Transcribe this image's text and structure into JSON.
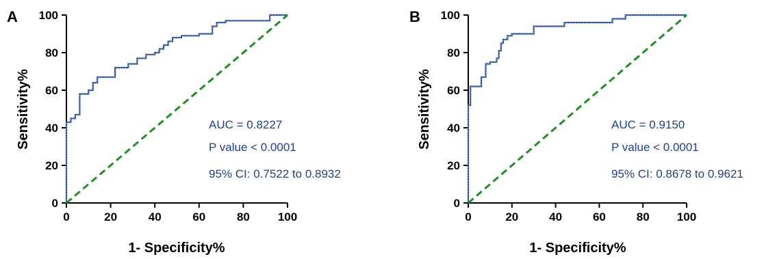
{
  "chart_data": [
    {
      "panel": "A",
      "type": "line",
      "xlabel": "1- Specificity%",
      "ylabel": "Sensitivity%",
      "xlim": [
        0,
        100
      ],
      "ylim": [
        0,
        100
      ],
      "xticks": [
        0,
        20,
        40,
        60,
        80,
        100
      ],
      "yticks": [
        0,
        20,
        40,
        60,
        80,
        100
      ],
      "annotations": [
        "AUC = 0.8227",
        "P value < 0.0001",
        "95% CI: 0.7522 to 0.8932"
      ],
      "colors": {
        "roc": "#2b4f9e",
        "reference": "#1f8f1f",
        "annotation": "#1f3f8f"
      },
      "series": [
        {
          "style": "step",
          "x": [
            0,
            0,
            2,
            2,
            4,
            4,
            6,
            6,
            10,
            10,
            12,
            12,
            14,
            14,
            18,
            18,
            22,
            22,
            28,
            28,
            32,
            32,
            36,
            36,
            40,
            40,
            42,
            42,
            44,
            44,
            46,
            46,
            48,
            48,
            52,
            52,
            60,
            60,
            66,
            66,
            68,
            68,
            72,
            72,
            92,
            92,
            100
          ],
          "y": [
            0,
            43,
            43,
            45,
            45,
            47,
            47,
            58,
            58,
            60,
            60,
            64,
            64,
            67,
            67,
            67,
            67,
            72,
            72,
            74,
            74,
            77,
            77,
            79,
            79,
            80,
            80,
            82,
            82,
            84,
            84,
            86,
            86,
            88,
            88,
            89,
            89,
            90,
            90,
            94,
            94,
            96,
            96,
            97,
            97,
            100,
            100
          ]
        },
        {
          "style": "dashed",
          "x": [
            0,
            100
          ],
          "y": [
            0,
            100
          ]
        }
      ]
    },
    {
      "panel": "B",
      "type": "line",
      "xlabel": "1- Specificity%",
      "ylabel": "Sensitivity%",
      "xlim": [
        0,
        100
      ],
      "ylim": [
        0,
        100
      ],
      "xticks": [
        0,
        20,
        40,
        60,
        80,
        100
      ],
      "yticks": [
        0,
        20,
        40,
        60,
        80,
        100
      ],
      "annotations": [
        "AUC = 0.9150",
        "P value < 0.0001",
        "95% CI: 0.8678 to 0.9621"
      ],
      "colors": {
        "roc": "#2b4f9e",
        "reference": "#1f8f1f",
        "annotation": "#1f3f8f"
      },
      "series": [
        {
          "style": "step",
          "x": [
            0,
            0,
            1,
            1,
            2,
            2,
            6,
            6,
            8,
            8,
            10,
            10,
            13,
            13,
            14,
            14,
            15,
            15,
            16,
            16,
            18,
            18,
            20,
            20,
            30,
            30,
            44,
            44,
            66,
            66,
            72,
            72,
            100
          ],
          "y": [
            0,
            52,
            52,
            62,
            62,
            62,
            62,
            67,
            67,
            74,
            74,
            75,
            75,
            77,
            77,
            81,
            81,
            85,
            85,
            87,
            87,
            89,
            89,
            90,
            90,
            94,
            94,
            96,
            96,
            98,
            98,
            100,
            100
          ]
        },
        {
          "style": "dashed",
          "x": [
            0,
            100
          ],
          "y": [
            0,
            100
          ]
        }
      ]
    }
  ]
}
